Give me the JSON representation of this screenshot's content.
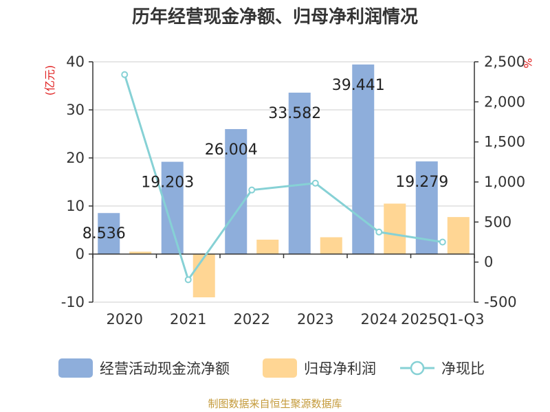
{
  "chart_data": {
    "type": "bar",
    "title": "历年经营现金净额、归母净利润情况",
    "categories": [
      "2020",
      "2021",
      "2022",
      "2023",
      "2024",
      "2025Q1-Q3"
    ],
    "series": [
      {
        "name": "经营活动现金流净额",
        "kind": "bar",
        "axis": "left",
        "color": "#8eaedb",
        "values": [
          8.536,
          19.203,
          26.004,
          33.582,
          39.441,
          19.279
        ]
      },
      {
        "name": "归母净利润",
        "kind": "bar",
        "axis": "left",
        "color": "#ffd694",
        "values": [
          0.5,
          -9.0,
          3.0,
          3.5,
          10.5,
          7.7
        ]
      },
      {
        "name": "净现比",
        "kind": "line",
        "axis": "right",
        "color": "#86d1d5",
        "values": [
          2340,
          -220,
          900,
          985,
          375,
          250
        ]
      }
    ],
    "data_labels": [
      "8.536",
      "19.203",
      "26.004",
      "33.582",
      "39.441",
      "19.279"
    ],
    "left_axis": {
      "unit": "(亿元)",
      "ylim": [
        -10,
        40
      ],
      "ticks": [
        "-10",
        "0",
        "10",
        "20",
        "30",
        "40"
      ]
    },
    "right_axis": {
      "unit": "%",
      "ylim": [
        -500,
        2500
      ],
      "ticks": [
        "-500",
        "0",
        "500",
        "1,000",
        "1,500",
        "2,000",
        "2,500"
      ]
    },
    "grid": true,
    "legend": "bottom"
  },
  "footer": {
    "source": "制图数据来自恒生聚源数据库"
  },
  "colors": {
    "unit": "#e02020",
    "source": "#c49a3a",
    "axis": "#333333",
    "grid": "#cccccc"
  }
}
